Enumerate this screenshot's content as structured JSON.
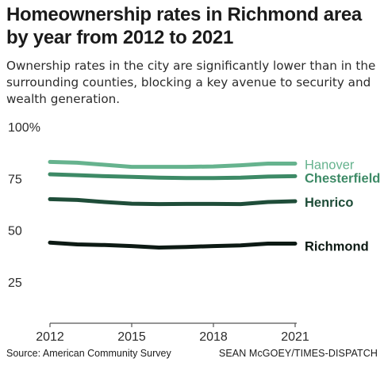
{
  "header": {
    "title": "Homeownership rates in Richmond area by year from 2012 to 2021",
    "subtitle": "Ownership rates in the city are significantly lower than in the surrounding counties, blocking a key avenue to security and wealth generation."
  },
  "footer": {
    "source": "Source: American Community Survey",
    "credit": "SEAN McGOEY/TIMES-DISPATCH"
  },
  "chart_data": {
    "type": "line",
    "x": [
      2012,
      2013,
      2014,
      2015,
      2016,
      2017,
      2018,
      2019,
      2020,
      2021
    ],
    "series": [
      {
        "name": "Hanover",
        "color": "#66b38e",
        "values": [
          83,
          82.6,
          81.6,
          80.6,
          80.6,
          80.6,
          80.8,
          81.4,
          82.2,
          82.2
        ]
      },
      {
        "name": "Chesterfield",
        "color": "#3d8a66",
        "values": [
          77,
          76.6,
          76.1,
          75.8,
          75.4,
          75.2,
          75.2,
          75.4,
          75.9,
          76.1
        ]
      },
      {
        "name": "Henrico",
        "color": "#1f4d39",
        "values": [
          65,
          64.6,
          63.6,
          62.8,
          62.6,
          62.7,
          62.7,
          62.6,
          63.6,
          64
        ]
      },
      {
        "name": "Richmond",
        "color": "#0d1a14",
        "values": [
          44,
          43.1,
          42.8,
          42.3,
          41.6,
          41.9,
          42.3,
          42.6,
          43.5,
          43.5
        ]
      }
    ],
    "xticks": [
      2012,
      2015,
      2018,
      2021
    ],
    "xtick_labels": [
      "2012",
      "2015",
      "2018",
      "2021"
    ],
    "yticks": [
      25,
      50,
      75,
      100
    ],
    "ytick_labels": [
      "25",
      "50",
      "75",
      "100%"
    ],
    "ylim": [
      5,
      100
    ],
    "xlim": [
      2012,
      2021
    ],
    "grid": false,
    "legend": "right-of-lines"
  }
}
